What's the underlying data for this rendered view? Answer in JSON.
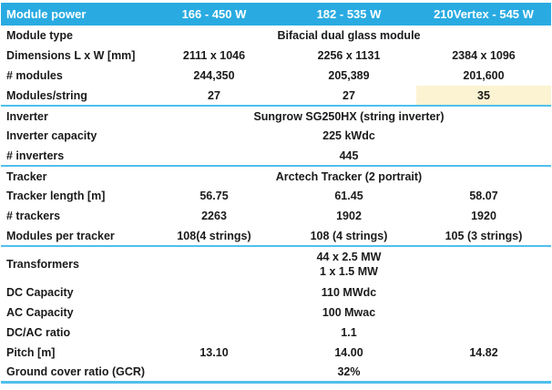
{
  "colors": {
    "header_bg": "#29ABE2",
    "header_text": "#FFFFFF",
    "divider": "#4FC0EC",
    "highlight_bg": "#FCF3D2",
    "text": "#1A1A1A"
  },
  "table": {
    "header": {
      "label": "Module power",
      "columns": [
        "166 - 450 W",
        "182 - 535 W",
        "210Vertex - 545 W"
      ]
    },
    "rows": [
      {
        "label": "Module type",
        "span": "Bifacial dual glass module"
      },
      {
        "label": "Dimensions L x W [mm]",
        "values": [
          "2111 x 1046",
          "2256 x 1131",
          "2384 x 1096"
        ]
      },
      {
        "label": "# modules",
        "values": [
          "244,350",
          "205,389",
          "201,600"
        ]
      },
      {
        "label": "Modules/string",
        "values": [
          "27",
          "27",
          "35"
        ],
        "highlight_col": 2,
        "divider_after": true
      },
      {
        "label": "Inverter",
        "span": "Sungrow SG250HX (string inverter)"
      },
      {
        "label": "Inverter capacity",
        "span": "225 kWdc"
      },
      {
        "label": "# inverters",
        "span": "445",
        "divider_after": true
      },
      {
        "label": "Tracker",
        "span": "Arctech Tracker (2 portrait)"
      },
      {
        "label": "Tracker length [m]",
        "values": [
          "56.75",
          "61.45",
          "58.07"
        ]
      },
      {
        "label": "# trackers",
        "values": [
          "2263",
          "1902",
          "1920"
        ]
      },
      {
        "label": "Modules per tracker",
        "values": [
          "108(4 strings)",
          "108 (4 strings)",
          "105 (3 strings)"
        ],
        "divider_after": true
      },
      {
        "label": "Transformers",
        "span": "44 x 2.5 MW\n1 x 1.5 MW"
      },
      {
        "label": "DC Capacity",
        "span": "110 MWdc"
      },
      {
        "label": "AC Capacity",
        "span": "100 Mwac"
      },
      {
        "label": "DC/AC ratio",
        "span": "1.1"
      },
      {
        "label": "Pitch [m]",
        "values": [
          "13.10",
          "14.00",
          "14.82"
        ]
      },
      {
        "label": "Ground cover ratio (GCR)",
        "span": "32%"
      }
    ]
  }
}
